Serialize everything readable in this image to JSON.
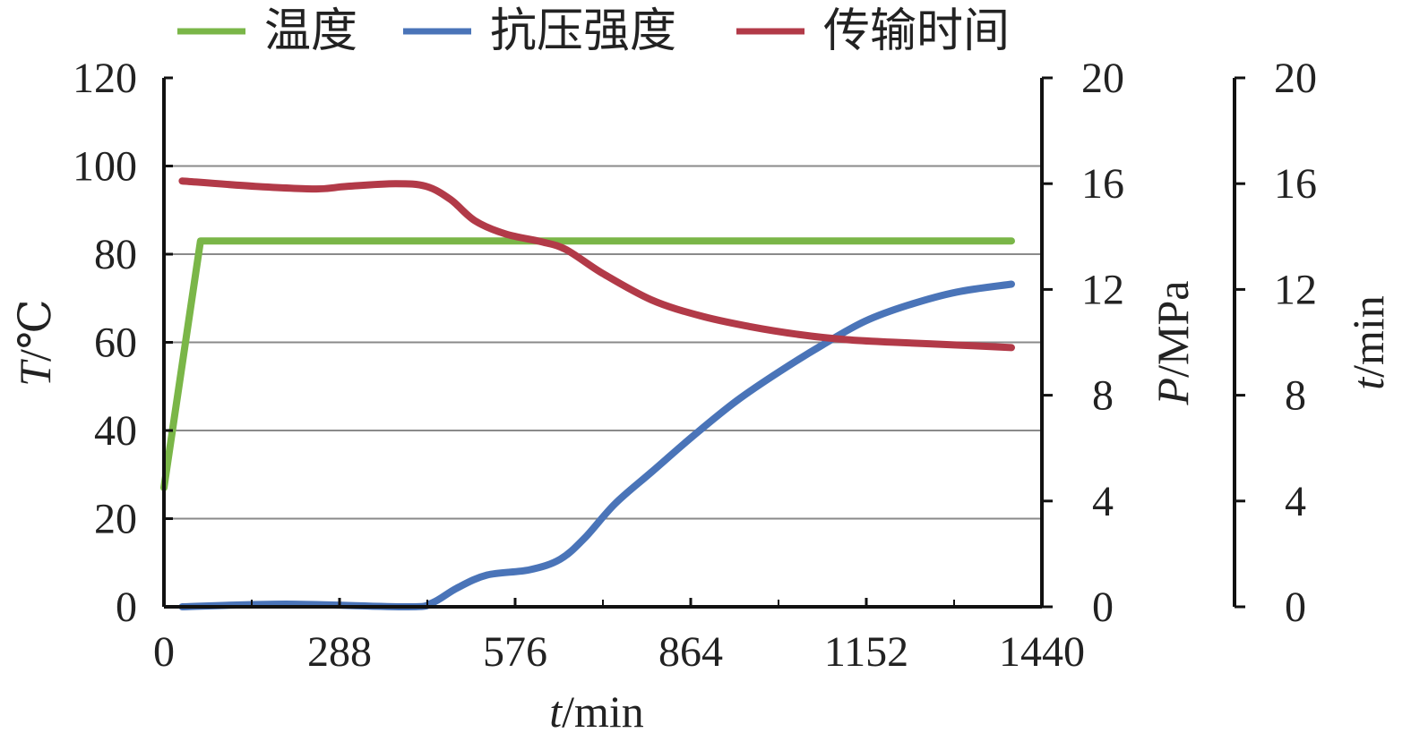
{
  "chart_data": {
    "type": "line",
    "title": "",
    "legend": [
      {
        "label": "温度",
        "color": "#7ab648"
      },
      {
        "label": "抗压强度",
        "color": "#4a74b8"
      },
      {
        "label": "传输时间",
        "color": "#b23a48"
      }
    ],
    "x_axis": {
      "label_italic": "t",
      "label_rest": "/min",
      "ticks": [
        "0",
        "288",
        "576",
        "864",
        "1152",
        "1440"
      ],
      "range": [
        0,
        1440
      ]
    },
    "y_left": {
      "label_italic": "T",
      "label_rest": "/℃",
      "ticks": [
        "0",
        "20",
        "40",
        "60",
        "80",
        "100",
        "120"
      ],
      "range": [
        0,
        120
      ]
    },
    "y_right1": {
      "label_italic": "P",
      "label_rest": "/MPa",
      "ticks": [
        "0",
        "4",
        "8",
        "12",
        "16",
        "20"
      ],
      "range": [
        0,
        20
      ]
    },
    "y_right2": {
      "label_italic": "t",
      "label_rest": "/min",
      "ticks": [
        "0",
        "4",
        "8",
        "12",
        "16",
        "20"
      ],
      "range": [
        0,
        20
      ]
    },
    "grid": true,
    "series": [
      {
        "name": "温度",
        "axis": "left",
        "color": "#7ab648",
        "x": [
          0,
          60,
          1390
        ],
        "y": [
          27,
          83,
          83
        ]
      },
      {
        "name": "抗压强度",
        "axis": "right1",
        "color": "#4a74b8",
        "x": [
          30,
          200,
          400,
          440,
          480,
          530,
          600,
          650,
          690,
          740,
          800,
          870,
          940,
          1010,
          1080,
          1150,
          1220,
          1300,
          1390
        ],
        "y": [
          0.0,
          0.1,
          0.0,
          0.15,
          0.7,
          1.2,
          1.4,
          1.8,
          2.6,
          3.9,
          5.1,
          6.5,
          7.8,
          8.9,
          9.9,
          10.8,
          11.4,
          11.9,
          12.2
        ]
      },
      {
        "name": "传输时间",
        "axis": "right2",
        "color": "#b23a48",
        "x": [
          30,
          150,
          250,
          300,
          380,
          430,
          470,
          510,
          560,
          620,
          660,
          720,
          800,
          880,
          960,
          1040,
          1120,
          1200,
          1300,
          1390
        ],
        "y": [
          16.1,
          15.9,
          15.8,
          15.9,
          16.0,
          15.9,
          15.4,
          14.6,
          14.1,
          13.8,
          13.5,
          12.6,
          11.6,
          11.0,
          10.6,
          10.3,
          10.1,
          10.0,
          9.9,
          9.8
        ]
      }
    ]
  }
}
